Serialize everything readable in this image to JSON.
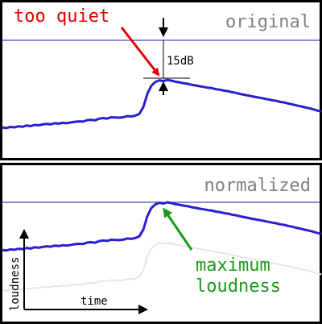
{
  "panels": {
    "top": {
      "title": "original"
    },
    "bottom": {
      "title": "normalized"
    }
  },
  "annotations": {
    "too_quiet": "too quiet",
    "gain": "15dB",
    "maximum_loudness_line1": "maximum",
    "maximum_loudness_line2": "loudness"
  },
  "axes": {
    "y_label": "loudness",
    "x_label": "time"
  },
  "colors": {
    "frame": "#000000",
    "waveform": "#2a1fd0",
    "reference_line": "#1a1ab0",
    "ghost_waveform": "#e6e6e6",
    "title_gray": "#808080",
    "too_quiet_red": "#e00000",
    "max_green": "#1a9a1a"
  },
  "waveform_loudness": [
    [
      0,
      4.6
    ],
    [
      5,
      4.4
    ],
    [
      10,
      4.9
    ],
    [
      15,
      4.7
    ],
    [
      20,
      5.2
    ],
    [
      25,
      5.0
    ],
    [
      30,
      5.6
    ],
    [
      35,
      5.3
    ],
    [
      40,
      5.9
    ],
    [
      45,
      5.7
    ],
    [
      50,
      6.1
    ],
    [
      55,
      6.4
    ],
    [
      60,
      6.2
    ],
    [
      65,
      6.7
    ],
    [
      70,
      6.5
    ],
    [
      75,
      6.9
    ],
    [
      80,
      6.7
    ],
    [
      85,
      7.1
    ],
    [
      90,
      7.4
    ],
    [
      95,
      7.6
    ],
    [
      100,
      7.5
    ],
    [
      105,
      8.2
    ],
    [
      110,
      8.4
    ],
    [
      115,
      8.1
    ],
    [
      120,
      8.9
    ],
    [
      125,
      9.2
    ],
    [
      130,
      9.0
    ],
    [
      135,
      9.6
    ],
    [
      140,
      9.5
    ],
    [
      145,
      9.4
    ],
    [
      150,
      9.6
    ],
    [
      155,
      10.2
    ],
    [
      160,
      10.0
    ],
    [
      165,
      10.4
    ],
    [
      170,
      11.2
    ],
    [
      175,
      14.5
    ],
    [
      180,
      21.0
    ],
    [
      185,
      25.0
    ],
    [
      190,
      26.8
    ],
    [
      195,
      27.6
    ],
    [
      200,
      27.2
    ],
    [
      205,
      27.8
    ],
    [
      210,
      27.4
    ],
    [
      215,
      26.9
    ],
    [
      220,
      26.6
    ],
    [
      225,
      26.2
    ],
    [
      230,
      25.9
    ],
    [
      235,
      25.4
    ],
    [
      240,
      25.1
    ],
    [
      245,
      24.7
    ],
    [
      250,
      24.4
    ],
    [
      255,
      24.0
    ],
    [
      260,
      23.8
    ],
    [
      265,
      23.3
    ],
    [
      270,
      23.0
    ],
    [
      275,
      22.6
    ],
    [
      280,
      22.3
    ],
    [
      285,
      21.8
    ],
    [
      290,
      21.5
    ],
    [
      295,
      21.0
    ],
    [
      300,
      20.6
    ],
    [
      305,
      20.2
    ],
    [
      310,
      19.8
    ],
    [
      315,
      19.4
    ],
    [
      320,
      19.1
    ],
    [
      325,
      18.7
    ],
    [
      330,
      18.3
    ],
    [
      335,
      17.9
    ],
    [
      340,
      17.6
    ],
    [
      345,
      17.1
    ],
    [
      350,
      16.8
    ],
    [
      355,
      16.3
    ],
    [
      360,
      15.9
    ],
    [
      365,
      15.4
    ],
    [
      370,
      15.0
    ],
    [
      375,
      14.5
    ],
    [
      380,
      14.1
    ],
    [
      385,
      13.6
    ],
    [
      390,
      13.0
    ],
    [
      396,
      12.4
    ]
  ]
}
